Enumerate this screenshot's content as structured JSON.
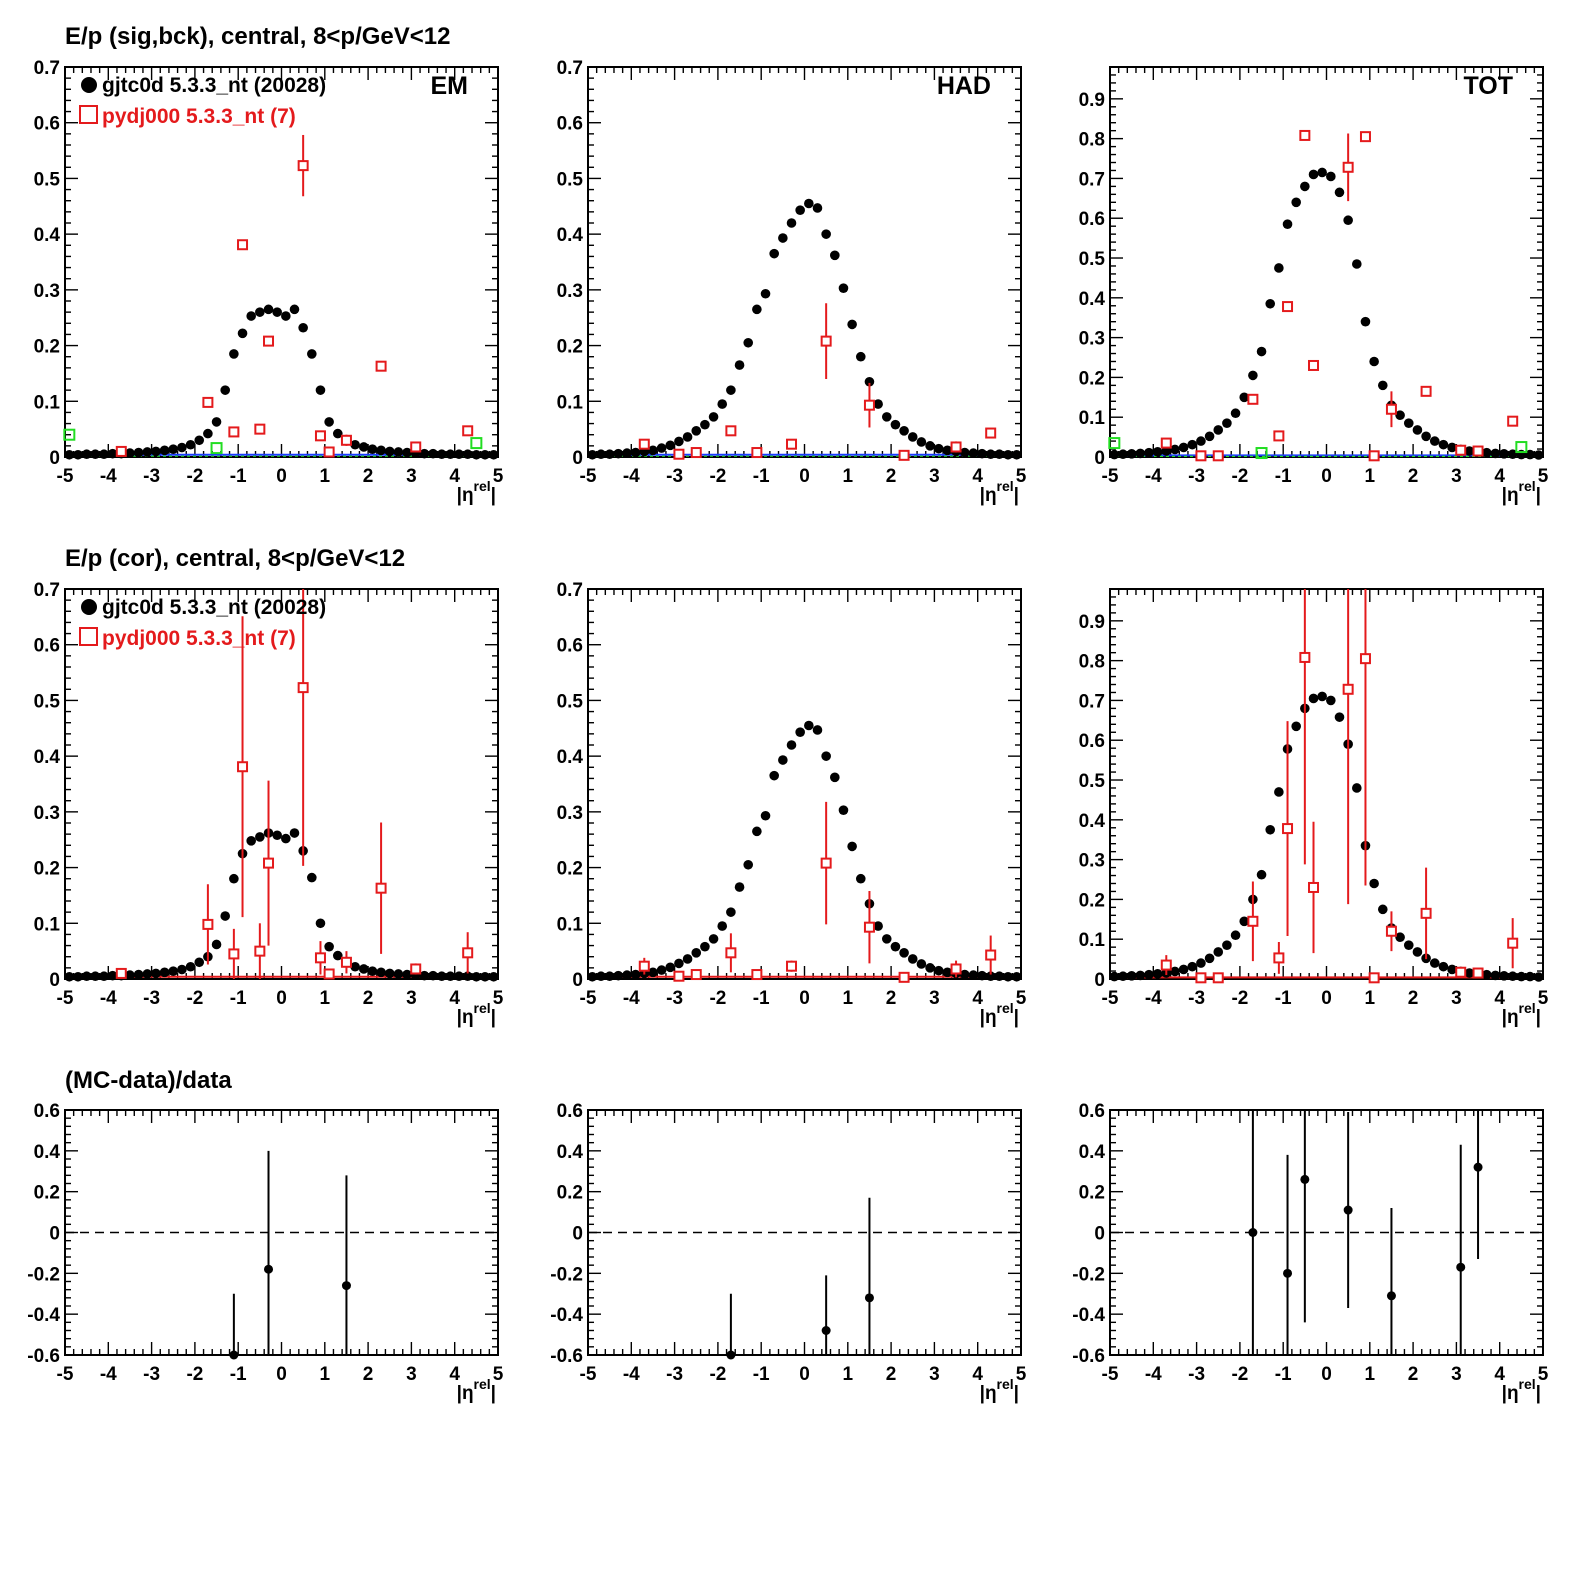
{
  "row_titles": [
    "E/p (sig,bck), central,  8<p/GeV<12",
    "E/p (cor), central,  8<p/GeV<12",
    "(MC-data)/data"
  ],
  "legend": {
    "data_label": "gjtc0d 5.3.3_nt (20028)",
    "mc_label": "pydj000 5.3.3_nt (7)"
  },
  "axis": {
    "x_title_base": "|η",
    "x_title_sup": "rel",
    "x_title_end": "|"
  },
  "colors": {
    "data": "#000000",
    "mc": "#e41a1c",
    "green": "#22dd22",
    "blue": "#1a3cff"
  },
  "chart_data": [
    {
      "type": "scatter",
      "panel": "row1-EM",
      "label": "EM",
      "xlim": [
        -5,
        5
      ],
      "ylim": [
        0,
        0.7
      ],
      "yticks": [
        0,
        0.1,
        0.2,
        0.3,
        0.4,
        0.5,
        0.6,
        0.7
      ],
      "data_series": {
        "name": "gjtc0d 5.3.3_nt (20028)",
        "x": [
          -4.9,
          -4.7,
          -4.5,
          -4.3,
          -4.1,
          -3.9,
          -3.7,
          -3.5,
          -3.3,
          -3.1,
          -2.9,
          -2.7,
          -2.5,
          -2.3,
          -2.1,
          -1.9,
          -1.7,
          -1.5,
          -1.3,
          -1.1,
          -0.9,
          -0.7,
          -0.5,
          -0.3,
          -0.1,
          0.1,
          0.3,
          0.5,
          0.7,
          0.9,
          1.1,
          1.3,
          1.5,
          1.7,
          1.9,
          2.1,
          2.3,
          2.5,
          2.7,
          2.9,
          3.1,
          3.3,
          3.5,
          3.7,
          3.9,
          4.1,
          4.3,
          4.5,
          4.7,
          4.9
        ],
        "y": [
          0.004,
          0.004,
          0.005,
          0.005,
          0.005,
          0.006,
          0.006,
          0.007,
          0.008,
          0.009,
          0.01,
          0.012,
          0.014,
          0.017,
          0.022,
          0.03,
          0.042,
          0.063,
          0.12,
          0.185,
          0.222,
          0.253,
          0.26,
          0.265,
          0.26,
          0.253,
          0.265,
          0.232,
          0.185,
          0.12,
          0.063,
          0.042,
          0.03,
          0.022,
          0.018,
          0.014,
          0.012,
          0.01,
          0.009,
          0.008,
          0.007,
          0.006,
          0.006,
          0.005,
          0.005,
          0.005,
          0.005,
          0.004,
          0.004,
          0.004
        ]
      },
      "mc_series": {
        "name": "pydj000 5.3.3_nt (7)",
        "x": [
          -3.7,
          -1.7,
          -1.1,
          -0.9,
          -0.5,
          -0.3,
          0.5,
          0.9,
          1.1,
          1.5,
          2.3,
          3.1,
          4.3
        ],
        "y": [
          0.01,
          0.098,
          0.045,
          0.381,
          0.05,
          0.208,
          0.523,
          0.038,
          0.009,
          0.03,
          0.163,
          0.018,
          0.047
        ],
        "err": [
          0,
          0,
          0,
          0,
          0,
          0,
          0.055,
          0,
          0,
          0.01,
          0,
          0,
          0
        ]
      },
      "green_points": {
        "x": [
          -4.9,
          -1.5,
          4.5
        ],
        "y": [
          0.04,
          0.016,
          0.025
        ]
      }
    },
    {
      "type": "scatter",
      "panel": "row1-HAD",
      "label": "HAD",
      "xlim": [
        -5,
        5
      ],
      "ylim": [
        0,
        0.7
      ],
      "yticks": [
        0,
        0.1,
        0.2,
        0.3,
        0.4,
        0.5,
        0.6,
        0.7
      ],
      "data_series": {
        "name": "gjtc0d 5.3.3_nt (20028)",
        "x": [
          -4.9,
          -4.7,
          -4.5,
          -4.3,
          -4.1,
          -3.9,
          -3.7,
          -3.5,
          -3.3,
          -3.1,
          -2.9,
          -2.7,
          -2.5,
          -2.3,
          -2.1,
          -1.9,
          -1.7,
          -1.5,
          -1.3,
          -1.1,
          -0.9,
          -0.7,
          -0.5,
          -0.3,
          -0.1,
          0.1,
          0.3,
          0.5,
          0.7,
          0.9,
          1.1,
          1.3,
          1.5,
          1.7,
          1.9,
          2.1,
          2.3,
          2.5,
          2.7,
          2.9,
          3.1,
          3.3,
          3.5,
          3.7,
          3.9,
          4.1,
          4.3,
          4.5,
          4.7,
          4.9
        ],
        "y": [
          0.004,
          0.005,
          0.005,
          0.006,
          0.007,
          0.008,
          0.01,
          0.012,
          0.016,
          0.021,
          0.028,
          0.036,
          0.047,
          0.058,
          0.072,
          0.095,
          0.12,
          0.165,
          0.205,
          0.265,
          0.293,
          0.365,
          0.393,
          0.42,
          0.443,
          0.455,
          0.447,
          0.4,
          0.362,
          0.303,
          0.238,
          0.18,
          0.135,
          0.095,
          0.072,
          0.058,
          0.047,
          0.036,
          0.027,
          0.02,
          0.015,
          0.012,
          0.01,
          0.008,
          0.007,
          0.006,
          0.005,
          0.005,
          0.004,
          0.004
        ]
      },
      "mc_series": {
        "name": "pydj000 5.3.3_nt (7)",
        "x": [
          -3.7,
          -2.9,
          -2.5,
          -1.7,
          -1.1,
          -0.3,
          0.5,
          1.5,
          2.3,
          3.5,
          4.3
        ],
        "y": [
          0.023,
          0.005,
          0.008,
          0.047,
          0.008,
          0.023,
          0.208,
          0.093,
          0.003,
          0.018,
          0.043
        ],
        "err": [
          0,
          0,
          0,
          0,
          0,
          0,
          0.068,
          0.04,
          0,
          0.01,
          0
        ]
      },
      "green_points": {
        "x": [],
        "y": []
      }
    },
    {
      "type": "scatter",
      "panel": "row1-TOT",
      "label": "TOT",
      "xlim": [
        -5,
        5
      ],
      "ylim": [
        0,
        0.98
      ],
      "yticks": [
        0,
        0.1,
        0.2,
        0.3,
        0.4,
        0.5,
        0.6,
        0.7,
        0.8,
        0.9
      ],
      "data_series": {
        "name": "gjtc0d 5.3.3_nt (20028)",
        "x": [
          -4.9,
          -4.7,
          -4.5,
          -4.3,
          -4.1,
          -3.9,
          -3.7,
          -3.5,
          -3.3,
          -3.1,
          -2.9,
          -2.7,
          -2.5,
          -2.3,
          -2.1,
          -1.9,
          -1.7,
          -1.5,
          -1.3,
          -1.1,
          -0.9,
          -0.7,
          -0.5,
          -0.3,
          -0.1,
          0.1,
          0.3,
          0.5,
          0.7,
          0.9,
          1.1,
          1.3,
          1.5,
          1.7,
          1.9,
          2.1,
          2.3,
          2.5,
          2.7,
          2.9,
          3.1,
          3.3,
          3.5,
          3.7,
          3.9,
          4.1,
          4.3,
          4.5,
          4.7,
          4.9
        ],
        "y": [
          0.006,
          0.007,
          0.008,
          0.009,
          0.011,
          0.013,
          0.015,
          0.019,
          0.024,
          0.031,
          0.04,
          0.052,
          0.068,
          0.085,
          0.11,
          0.15,
          0.205,
          0.265,
          0.385,
          0.475,
          0.585,
          0.64,
          0.68,
          0.71,
          0.715,
          0.705,
          0.665,
          0.595,
          0.485,
          0.34,
          0.24,
          0.18,
          0.13,
          0.105,
          0.085,
          0.068,
          0.052,
          0.04,
          0.031,
          0.024,
          0.019,
          0.015,
          0.013,
          0.011,
          0.009,
          0.008,
          0.007,
          0.006,
          0.006,
          0.005
        ]
      },
      "mc_series": {
        "name": "pydj000 5.3.3_nt (7)",
        "x": [
          -3.7,
          -2.9,
          -2.5,
          -1.7,
          -1.1,
          -0.9,
          -0.5,
          -0.3,
          0.5,
          0.9,
          1.1,
          1.5,
          2.3,
          3.1,
          3.5,
          4.3
        ],
        "y": [
          0.035,
          0.003,
          0.003,
          0.145,
          0.053,
          0.378,
          0.808,
          0.23,
          0.728,
          0.805,
          0.003,
          0.12,
          0.165,
          0.017,
          0.015,
          0.09
        ],
        "err": [
          0,
          0,
          0,
          0,
          0,
          0,
          0,
          0,
          0.085,
          0,
          0,
          0.045,
          0,
          0,
          0.01,
          0
        ]
      },
      "green_points": {
        "x": [
          -4.9,
          -1.5,
          4.5
        ],
        "y": [
          0.035,
          0.01,
          0.025
        ]
      }
    },
    {
      "type": "scatter",
      "panel": "row2-EM",
      "xlim": [
        -5,
        5
      ],
      "ylim": [
        0,
        0.7
      ],
      "yticks": [
        0,
        0.1,
        0.2,
        0.3,
        0.4,
        0.5,
        0.6,
        0.7
      ],
      "data_series": {
        "name": "gjtc0d 5.3.3_nt (20028)",
        "x": [
          -4.9,
          -4.7,
          -4.5,
          -4.3,
          -4.1,
          -3.9,
          -3.7,
          -3.5,
          -3.3,
          -3.1,
          -2.9,
          -2.7,
          -2.5,
          -2.3,
          -2.1,
          -1.9,
          -1.7,
          -1.5,
          -1.3,
          -1.1,
          -0.9,
          -0.7,
          -0.5,
          -0.3,
          -0.1,
          0.1,
          0.3,
          0.5,
          0.7,
          0.9,
          1.1,
          1.3,
          1.5,
          1.7,
          1.9,
          2.1,
          2.3,
          2.5,
          2.7,
          2.9,
          3.1,
          3.3,
          3.5,
          3.7,
          3.9,
          4.1,
          4.3,
          4.5,
          4.7,
          4.9
        ],
        "y": [
          0.004,
          0.004,
          0.005,
          0.005,
          0.005,
          0.006,
          0.006,
          0.007,
          0.008,
          0.009,
          0.01,
          0.012,
          0.014,
          0.017,
          0.022,
          0.03,
          0.04,
          0.062,
          0.113,
          0.18,
          0.225,
          0.248,
          0.255,
          0.262,
          0.258,
          0.252,
          0.262,
          0.23,
          0.182,
          0.1,
          0.058,
          0.042,
          0.03,
          0.022,
          0.018,
          0.014,
          0.012,
          0.01,
          0.009,
          0.008,
          0.007,
          0.006,
          0.006,
          0.005,
          0.005,
          0.005,
          0.005,
          0.004,
          0.004,
          0.004
        ]
      },
      "mc_series": {
        "name": "pydj000 5.3.3_nt (7)",
        "x": [
          -3.7,
          -1.7,
          -1.1,
          -0.9,
          -0.5,
          -0.3,
          0.5,
          0.9,
          1.1,
          1.5,
          2.3,
          3.1,
          4.3
        ],
        "y": [
          0.01,
          0.098,
          0.045,
          0.381,
          0.05,
          0.208,
          0.523,
          0.038,
          0.009,
          0.03,
          0.163,
          0.018,
          0.047
        ],
        "err": [
          0,
          0.072,
          0.045,
          0.27,
          0.05,
          0.148,
          0.32,
          0.03,
          0,
          0.02,
          0.118,
          0.01,
          0.037
        ]
      },
      "green_points": {
        "x": [],
        "y": []
      }
    },
    {
      "type": "scatter",
      "panel": "row2-HAD",
      "xlim": [
        -5,
        5
      ],
      "ylim": [
        0,
        0.7
      ],
      "yticks": [
        0,
        0.1,
        0.2,
        0.3,
        0.4,
        0.5,
        0.6,
        0.7
      ],
      "data_series": {
        "name": "gjtc0d 5.3.3_nt (20028)",
        "x": [
          -4.9,
          -4.7,
          -4.5,
          -4.3,
          -4.1,
          -3.9,
          -3.7,
          -3.5,
          -3.3,
          -3.1,
          -2.9,
          -2.7,
          -2.5,
          -2.3,
          -2.1,
          -1.9,
          -1.7,
          -1.5,
          -1.3,
          -1.1,
          -0.9,
          -0.7,
          -0.5,
          -0.3,
          -0.1,
          0.1,
          0.3,
          0.5,
          0.7,
          0.9,
          1.1,
          1.3,
          1.5,
          1.7,
          1.9,
          2.1,
          2.3,
          2.5,
          2.7,
          2.9,
          3.1,
          3.3,
          3.5,
          3.7,
          3.9,
          4.1,
          4.3,
          4.5,
          4.7,
          4.9
        ],
        "y": [
          0.004,
          0.005,
          0.005,
          0.006,
          0.007,
          0.008,
          0.01,
          0.012,
          0.016,
          0.021,
          0.028,
          0.036,
          0.047,
          0.058,
          0.072,
          0.095,
          0.12,
          0.165,
          0.205,
          0.265,
          0.293,
          0.365,
          0.393,
          0.42,
          0.443,
          0.455,
          0.447,
          0.4,
          0.362,
          0.303,
          0.238,
          0.18,
          0.135,
          0.095,
          0.072,
          0.058,
          0.047,
          0.036,
          0.027,
          0.02,
          0.015,
          0.012,
          0.01,
          0.008,
          0.007,
          0.006,
          0.005,
          0.005,
          0.004,
          0.004
        ]
      },
      "mc_series": {
        "name": "pydj000 5.3.3_nt (7)",
        "x": [
          -3.7,
          -2.9,
          -2.5,
          -1.7,
          -1.1,
          -0.3,
          0.5,
          1.5,
          2.3,
          3.5,
          4.3
        ],
        "y": [
          0.023,
          0.005,
          0.008,
          0.047,
          0.008,
          0.023,
          0.208,
          0.093,
          0.003,
          0.018,
          0.043
        ],
        "err": [
          0.015,
          0,
          0,
          0.035,
          0,
          0.01,
          0.11,
          0.065,
          0,
          0.015,
          0.035
        ]
      },
      "green_points": {
        "x": [],
        "y": []
      }
    },
    {
      "type": "scatter",
      "panel": "row2-TOT",
      "xlim": [
        -5,
        5
      ],
      "ylim": [
        0,
        0.98
      ],
      "yticks": [
        0,
        0.1,
        0.2,
        0.3,
        0.4,
        0.5,
        0.6,
        0.7,
        0.8,
        0.9
      ],
      "data_series": {
        "name": "gjtc0d 5.3.3_nt (20028)",
        "x": [
          -4.9,
          -4.7,
          -4.5,
          -4.3,
          -4.1,
          -3.9,
          -3.7,
          -3.5,
          -3.3,
          -3.1,
          -2.9,
          -2.7,
          -2.5,
          -2.3,
          -2.1,
          -1.9,
          -1.7,
          -1.5,
          -1.3,
          -1.1,
          -0.9,
          -0.7,
          -0.5,
          -0.3,
          -0.1,
          0.1,
          0.3,
          0.5,
          0.7,
          0.9,
          1.1,
          1.3,
          1.5,
          1.7,
          1.9,
          2.1,
          2.3,
          2.5,
          2.7,
          2.9,
          3.1,
          3.3,
          3.5,
          3.7,
          3.9,
          4.1,
          4.3,
          4.5,
          4.7,
          4.9
        ],
        "y": [
          0.006,
          0.007,
          0.008,
          0.009,
          0.011,
          0.013,
          0.015,
          0.019,
          0.024,
          0.031,
          0.04,
          0.052,
          0.068,
          0.085,
          0.11,
          0.145,
          0.2,
          0.262,
          0.375,
          0.47,
          0.578,
          0.635,
          0.68,
          0.705,
          0.71,
          0.7,
          0.658,
          0.59,
          0.48,
          0.335,
          0.24,
          0.175,
          0.128,
          0.105,
          0.085,
          0.068,
          0.052,
          0.04,
          0.031,
          0.024,
          0.019,
          0.015,
          0.013,
          0.011,
          0.009,
          0.008,
          0.007,
          0.006,
          0.006,
          0.005
        ]
      },
      "mc_series": {
        "name": "pydj000 5.3.3_nt (7)",
        "x": [
          -3.7,
          -2.9,
          -2.5,
          -1.7,
          -1.1,
          -0.9,
          -0.5,
          -0.3,
          0.5,
          0.9,
          1.1,
          1.5,
          2.3,
          3.1,
          3.5,
          4.3
        ],
        "y": [
          0.035,
          0.003,
          0.003,
          0.145,
          0.053,
          0.378,
          0.808,
          0.23,
          0.728,
          0.805,
          0.003,
          0.12,
          0.165,
          0.017,
          0.015,
          0.09
        ],
        "err": [
          0.025,
          0,
          0,
          0.1,
          0.04,
          0.27,
          0.52,
          0.165,
          0.54,
          0.57,
          0,
          0.05,
          0.115,
          0.012,
          0.01,
          0.063
        ]
      },
      "green_points": {
        "x": [],
        "y": []
      }
    },
    {
      "type": "scatter",
      "panel": "row3-EM",
      "xlim": [
        -5,
        5
      ],
      "ylim": [
        -0.6,
        0.6
      ],
      "yticks": [
        -0.6,
        -0.4,
        -0.2,
        0,
        0.2,
        0.4,
        0.6
      ],
      "ratio_series": {
        "x": [
          -1.1,
          -0.3,
          1.5
        ],
        "y": [
          -0.6,
          -0.18,
          -0.26
        ],
        "err": [
          0.3,
          0.58,
          0.54
        ]
      }
    },
    {
      "type": "scatter",
      "panel": "row3-HAD",
      "xlim": [
        -5,
        5
      ],
      "ylim": [
        -0.6,
        0.6
      ],
      "yticks": [
        -0.6,
        -0.4,
        -0.2,
        0,
        0.2,
        0.4,
        0.6
      ],
      "ratio_series": {
        "x": [
          -1.7,
          0.5,
          1.5
        ],
        "y": [
          -0.6,
          -0.48,
          -0.32
        ],
        "err": [
          0.3,
          0.27,
          0.49
        ]
      }
    },
    {
      "type": "scatter",
      "panel": "row3-TOT",
      "xlim": [
        -5,
        5
      ],
      "ylim": [
        -0.6,
        0.6
      ],
      "yticks": [
        -0.6,
        -0.4,
        -0.2,
        0,
        0.2,
        0.4,
        0.6
      ],
      "ratio_series": {
        "x": [
          -1.7,
          -0.9,
          -0.5,
          0.5,
          1.5,
          3.1,
          3.5
        ],
        "y": [
          0.0,
          -0.2,
          0.26,
          0.11,
          -0.31,
          -0.17,
          0.32
        ],
        "err": [
          0.65,
          0.58,
          0.7,
          0.48,
          0.43,
          0.6,
          0.45
        ]
      }
    }
  ]
}
